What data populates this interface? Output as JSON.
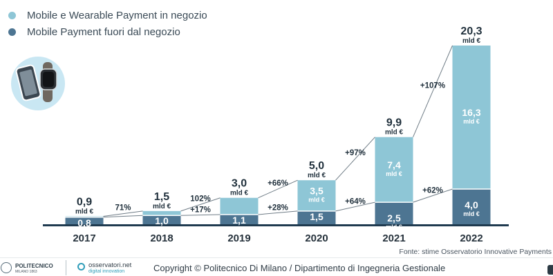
{
  "legend": [
    {
      "label": "Mobile e Wearable Payment in negozio",
      "color": "#8ec6d6"
    },
    {
      "label": "Mobile Payment fuori dal negozio",
      "color": "#4d7592"
    }
  ],
  "chart_data": {
    "type": "bar",
    "stacked": true,
    "categories": [
      "2017",
      "2018",
      "2019",
      "2020",
      "2021",
      "2022"
    ],
    "series": [
      {
        "name": "Mobile Payment fuori dal negozio",
        "color": "#4d7592",
        "values": [
          0.8,
          1.0,
          1.1,
          1.5,
          2.5,
          4.0
        ],
        "labels": [
          "0,8",
          "1,0",
          "1,1",
          "1,5",
          "2,5",
          "4,0"
        ]
      },
      {
        "name": "Mobile e Wearable Payment in negozio",
        "color": "#8ec6d6",
        "values": [
          0.1,
          0.5,
          1.9,
          3.5,
          7.4,
          16.3
        ],
        "labels": [
          "",
          "",
          "",
          "3,5",
          "7,4",
          "16,3"
        ]
      }
    ],
    "totals": [
      0.9,
      1.5,
      3.0,
      5.0,
      9.9,
      20.3
    ],
    "total_labels": [
      "0,9",
      "1,5",
      "3,0",
      "5,0",
      "9,9",
      "20,3"
    ],
    "unit": "mld €",
    "growth_total": [
      "",
      "71%",
      "102%",
      "+66%",
      "+97%",
      "+107%"
    ],
    "growth_bottom": [
      "",
      "",
      "+17%",
      "+28%",
      "+64%",
      "+62%"
    ],
    "ylim": [
      0,
      20.3
    ],
    "grid": false,
    "legend_position": "top-left"
  },
  "source": "Fonte: stime Osservatorio Innovative Payments",
  "footer": {
    "politecnico": "POLITECNICO",
    "politecnico_sub": "MILANO 1863",
    "osservatori_name": "osservatori.net",
    "osservatori_sub": "digital innovation",
    "copyright": "Copyright © Politecnico Di Milano / Dipartimento di Ingegneria Gestionale"
  }
}
